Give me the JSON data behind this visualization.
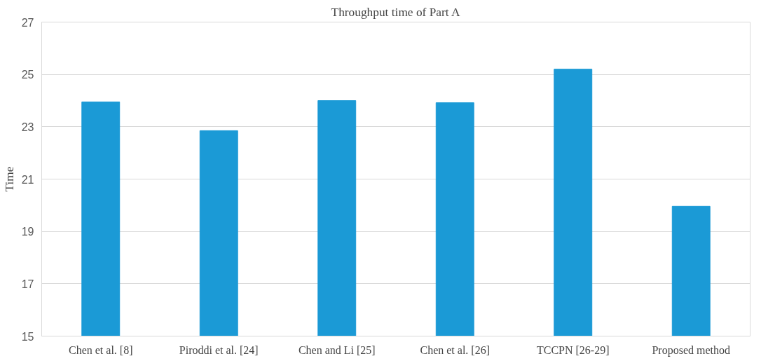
{
  "chart_data": {
    "type": "bar",
    "title": "Throughput time of Part A",
    "ylabel": "Time",
    "categories": [
      "Chen et al. [8]",
      "Piroddi et al. [24]",
      "Chen and Li [25]",
      "Chen et al. [26]",
      "TCCPN [26-29]",
      "Proposed method"
    ],
    "values": [
      23.95,
      22.85,
      24.0,
      23.92,
      25.2,
      19.96
    ],
    "color": "#1b9ad6",
    "ylim": [
      15,
      27
    ],
    "yticks": [
      15,
      17,
      19,
      21,
      23,
      25,
      27
    ],
    "grid": "y"
  }
}
